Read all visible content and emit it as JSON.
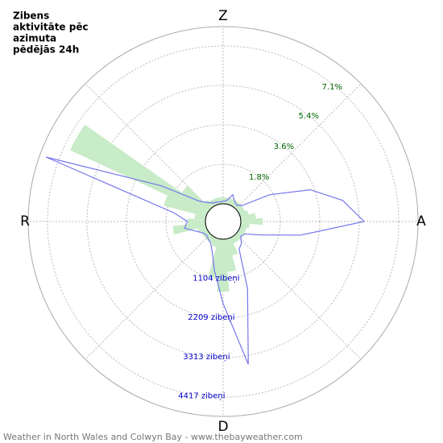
{
  "chart_data": {
    "type": "polar",
    "title_lines": [
      "Zibens",
      "aktivitāte pēc",
      "azimuta",
      "pēdējās 24h"
    ],
    "footer": "Weather in North Wales and Colwyn Bay - www.thebayweather.com",
    "directions": [
      "Z",
      "A",
      "D",
      "R"
    ],
    "x": [
      0,
      10,
      20,
      30,
      40,
      50,
      60,
      70,
      80,
      90,
      100,
      110,
      120,
      130,
      140,
      150,
      160,
      170,
      180,
      190,
      200,
      210,
      220,
      230,
      240,
      250,
      260,
      270,
      280,
      290,
      300,
      310,
      320,
      330,
      340,
      350
    ],
    "rlim": [
      0,
      8.09
    ],
    "rticks": [
      {
        "value": 1.8,
        "label": "1.8%"
      },
      {
        "value": 3.6,
        "label": "3.6%"
      },
      {
        "value": 5.4,
        "label": "5.4%"
      },
      {
        "value": 7.1,
        "label": "7.1%"
      }
    ],
    "r2lim": [
      0,
      4957
    ],
    "r2ticks": [
      {
        "value": 1104,
        "label": "1104 zibeņi"
      },
      {
        "value": 2209,
        "label": "2209 zibeņi"
      },
      {
        "value": 3313,
        "label": "3313 zibeņi"
      },
      {
        "value": 4417,
        "label": "4417 zibeņi"
      }
    ],
    "series": [
      {
        "color": "#c8ebc8",
        "axis": "r",
        "style": "wedge",
        "values": [
          0.3,
          0.3,
          0.3,
          0.3,
          0.3,
          0.3,
          0.3,
          0.4,
          0.7,
          1.0,
          0.4,
          0.3,
          0.3,
          0.3,
          0.3,
          0.3,
          0.8,
          1.5,
          2.4,
          1.8,
          0.4,
          0.3,
          0.3,
          0.3,
          0.3,
          0.4,
          1.5,
          0.8,
          0.5,
          2.0,
          6.9,
          1.5,
          0.4,
          0.3,
          0.3,
          0.3
        ]
      },
      {
        "color": "#7777ee",
        "axis": "r2",
        "style": "line",
        "values": [
          70,
          100,
          300,
          150,
          100,
          200,
          1000,
          2100,
          2900,
          3450,
          1700,
          600,
          200,
          150,
          300,
          400,
          1500,
          3560,
          1800,
          900,
          400,
          200,
          150,
          100,
          150,
          300,
          600,
          500,
          900,
          4775,
          1500,
          400,
          200,
          100,
          80,
          60
        ]
      }
    ]
  }
}
